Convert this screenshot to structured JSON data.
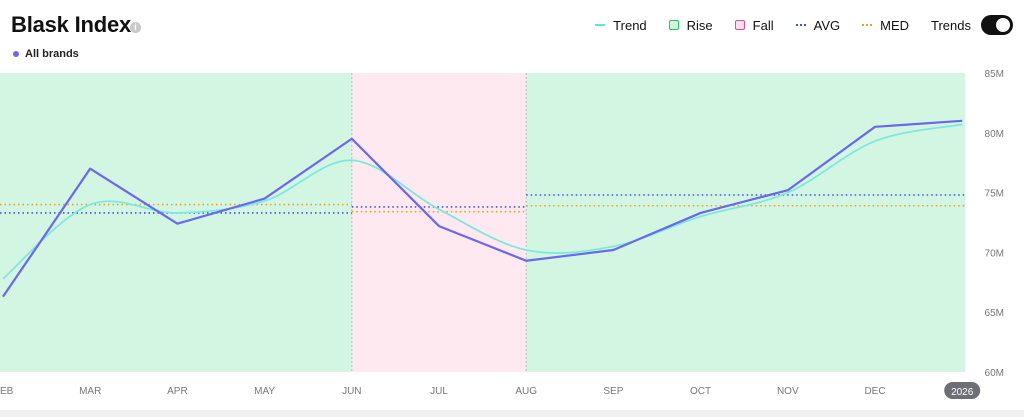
{
  "header": {
    "title": "Blask Index",
    "info_icon": "i",
    "brand_label": "All brands",
    "trends_label": "Trends",
    "trends_enabled": true
  },
  "legend": [
    {
      "label": "Trend",
      "kind": "line",
      "color": "#5eead4"
    },
    {
      "label": "Rise",
      "kind": "box",
      "color": "#22c55e",
      "fill": "#d1f7e0"
    },
    {
      "label": "Fall",
      "kind": "box",
      "color": "#ec4899",
      "fill": "#fde2ec"
    },
    {
      "label": "AVG",
      "kind": "dots",
      "color": "#3b55e6"
    },
    {
      "label": "MED",
      "kind": "dots",
      "color": "#f59e0b"
    }
  ],
  "colors": {
    "main_line": "#6a67f0",
    "trend_line": "#7ee8df",
    "rise_bg": "#d3f6e2",
    "fall_bg": "#fde9ef",
    "avg": "#3b55e6",
    "med": "#f0a020",
    "axis_text": "#777777",
    "badge_bg": "#6e6e78"
  },
  "chart_data": {
    "type": "line",
    "x": [
      "FEB",
      "MAR",
      "APR",
      "MAY",
      "JUN",
      "JUL",
      "AUG",
      "SEP",
      "OCT",
      "NOV",
      "DEC",
      "2026"
    ],
    "x_tick_labels": [
      "EB",
      "MAR",
      "APR",
      "MAY",
      "JUN",
      "JUL",
      "AUG",
      "SEP",
      "OCT",
      "NOV",
      "DEC",
      "2026"
    ],
    "highlighted_tick": "2026",
    "series": [
      {
        "values": [
          66.3,
          77.0,
          72.4,
          74.5,
          79.5,
          72.2,
          69.3,
          70.2,
          73.3,
          75.2,
          80.5,
          81.0
        ]
      },
      {
        "style": "smooth",
        "values": [
          67.8,
          74.0,
          73.3,
          74.3,
          77.7,
          73.6,
          70.2,
          70.5,
          73.0,
          75.0,
          79.3,
          80.7
        ]
      }
    ],
    "regions": [
      {
        "type": "Rise",
        "from": "FEB",
        "to": "JUN",
        "avg": 73.3,
        "med": 74.0
      },
      {
        "type": "Fall",
        "from": "JUN",
        "to": "AUG",
        "avg": 73.8,
        "med": 73.4
      },
      {
        "type": "Rise",
        "from": "AUG",
        "to": "2026",
        "avg": 74.8,
        "med": 73.9
      }
    ],
    "y_ticks": [
      "85M",
      "80M",
      "75M",
      "70M",
      "65M",
      "60M"
    ],
    "ylim": [
      60,
      85
    ],
    "y_unit": "M",
    "xlabel": "",
    "ylabel": ""
  }
}
